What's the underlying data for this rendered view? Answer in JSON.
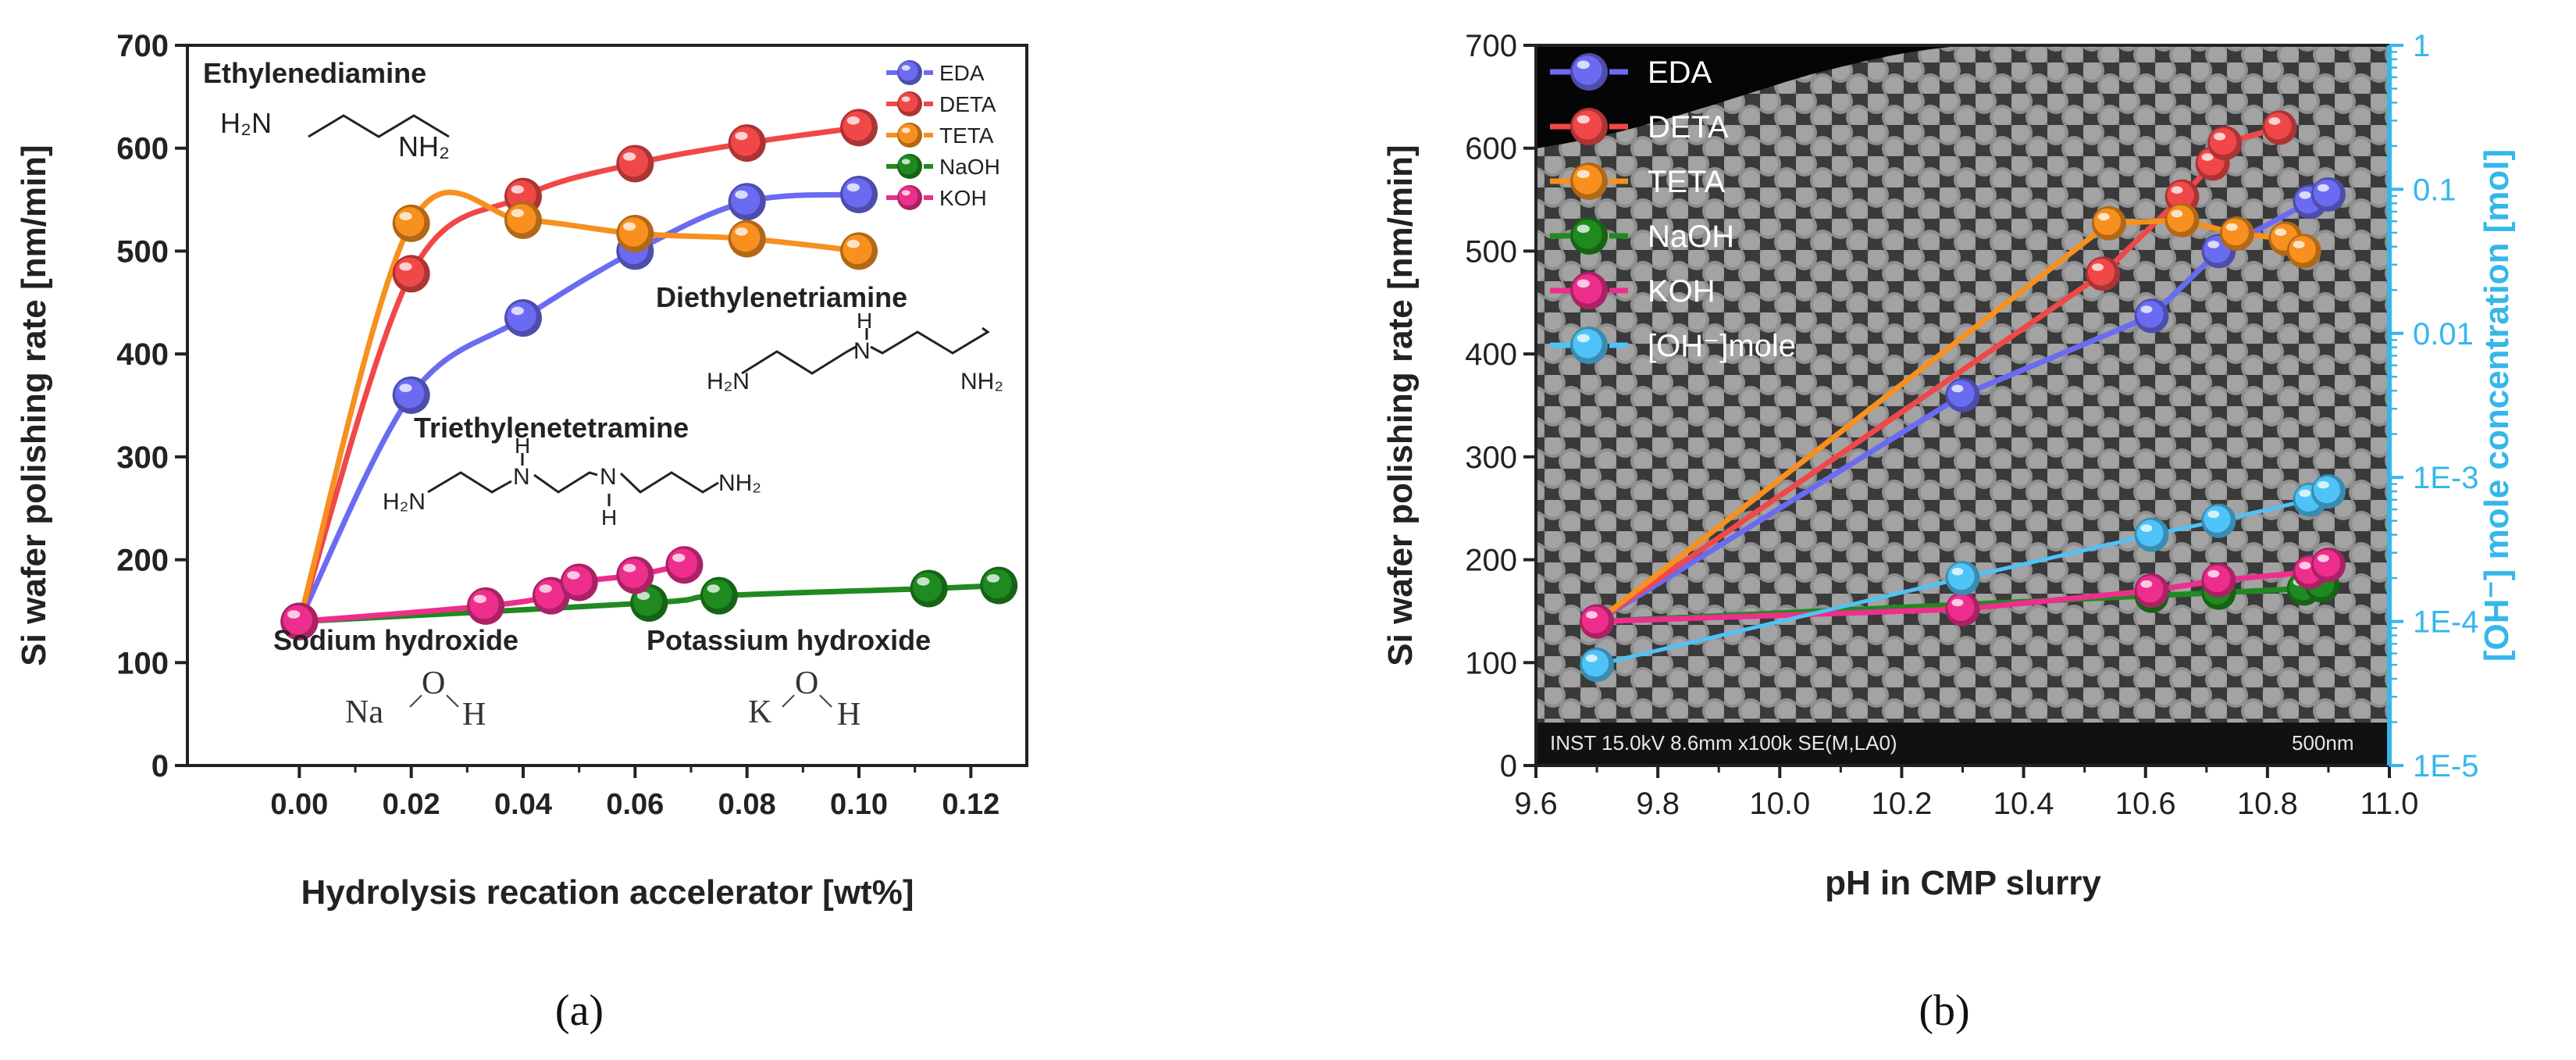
{
  "colors": {
    "EDA": "#6b6bf2",
    "DETA": "#f04848",
    "TETA": "#f7901e",
    "NaOH": "#1f8a1f",
    "KOH": "#ee2e8c",
    "OHmole": "#4fc3f7",
    "axis_right": "#35b7ea"
  },
  "chart_data": [
    {
      "type": "line",
      "panel_label": "(a)",
      "xlabel": "Hydrolysis recation accelerator [wt%]",
      "ylabel": "Si wafer polishing rate [nm/min]",
      "xlim": [
        -0.02,
        0.13
      ],
      "ylim": [
        0,
        700
      ],
      "xticks": [
        "0.00",
        "0.02",
        "0.04",
        "0.06",
        "0.08",
        "0.10",
        "0.12"
      ],
      "yticks": [
        "0",
        "100",
        "200",
        "300",
        "400",
        "500",
        "600",
        "700"
      ],
      "legend_position": "top-right",
      "series": [
        {
          "name": "EDA",
          "color_key": "EDA",
          "x": [
            0,
            0.02,
            0.04,
            0.06,
            0.08,
            0.1
          ],
          "y": [
            140,
            360,
            435,
            500,
            548,
            555
          ]
        },
        {
          "name": "DETA",
          "color_key": "DETA",
          "x": [
            0,
            0.02,
            0.04,
            0.06,
            0.08,
            0.1
          ],
          "y": [
            140,
            478,
            553,
            585,
            605,
            620
          ]
        },
        {
          "name": "TETA",
          "color_key": "TETA",
          "x": [
            0,
            0.02,
            0.04,
            0.06,
            0.08,
            0.1
          ],
          "y": [
            140,
            527,
            530,
            517,
            512,
            500
          ]
        },
        {
          "name": "NaOH",
          "color_key": "NaOH",
          "x": [
            0,
            0.0625,
            0.075,
            0.1125,
            0.125
          ],
          "y": [
            140,
            158,
            165,
            172,
            175
          ]
        },
        {
          "name": "KOH",
          "color_key": "KOH",
          "x": [
            0,
            0.0333,
            0.045,
            0.05,
            0.06,
            0.0688
          ],
          "y": [
            140,
            155,
            165,
            178,
            185,
            195
          ]
        }
      ],
      "annotations": [
        {
          "text": "Ethylenediamine",
          "formula": "EDA"
        },
        {
          "text": "Diethylenetriamine",
          "formula": "DETA"
        },
        {
          "text": "Triethylenetetramine",
          "formula": "TETA"
        },
        {
          "text": "Sodium hydroxide",
          "formula": "NaOH"
        },
        {
          "text": "Potassium hydroxide",
          "formula": "KOH"
        }
      ]
    },
    {
      "type": "line",
      "panel_label": "(b)",
      "xlabel": "pH in CMP slurry",
      "ylabel": "Si wafer polishing rate [nm/min]",
      "ylabel_right": "[OH⁻] mole concentration [mol]",
      "xlim": [
        9.6,
        11.0
      ],
      "ylim": [
        0,
        700
      ],
      "ylim_right_log": [
        1e-05,
        1
      ],
      "xticks": [
        "9.6",
        "9.8",
        "10.0",
        "10.2",
        "10.4",
        "10.6",
        "10.8",
        "11.0"
      ],
      "yticks": [
        "0",
        "100",
        "200",
        "300",
        "400",
        "500",
        "600",
        "700"
      ],
      "yticks_right": [
        "1E-5",
        "1E-4",
        "1E-3",
        "0.01",
        "0.1",
        "1"
      ],
      "legend_position": "top-left",
      "background_caption": "INST 15.0kV 8.6mm x100k SE(M,LA0)",
      "scale_bar": "500nm",
      "series": [
        {
          "name": "EDA",
          "color_key": "EDA",
          "axis": "left",
          "x": [
            9.7,
            10.3,
            10.61,
            10.72,
            10.87,
            10.9
          ],
          "y": [
            140,
            360,
            437,
            500,
            548,
            555
          ]
        },
        {
          "name": "DETA",
          "color_key": "DETA",
          "axis": "left",
          "x": [
            9.7,
            10.53,
            10.66,
            10.71,
            10.73,
            10.82
          ],
          "y": [
            140,
            478,
            553,
            585,
            605,
            620
          ]
        },
        {
          "name": "TETA",
          "color_key": "TETA",
          "axis": "left",
          "x": [
            9.7,
            10.54,
            10.66,
            10.75,
            10.83,
            10.86
          ],
          "y": [
            140,
            527,
            530,
            517,
            512,
            500
          ]
        },
        {
          "name": "NaOH",
          "color_key": "NaOH",
          "axis": "left",
          "x": [
            9.7,
            10.61,
            10.72,
            10.86,
            10.89
          ],
          "y": [
            140,
            165,
            168,
            172,
            175
          ]
        },
        {
          "name": "KOH",
          "color_key": "KOH",
          "axis": "left",
          "x": [
            9.7,
            10.3,
            10.61,
            10.72,
            10.87,
            10.9
          ],
          "y": [
            140,
            152,
            170,
            180,
            188,
            195
          ]
        },
        {
          "name": "[OH⁻]mole",
          "color_key": "OHmole",
          "axis": "right",
          "x": [
            9.7,
            10.3,
            10.61,
            10.72,
            10.87,
            10.9
          ],
          "y": [
            5e-05,
            0.0002,
            0.0004,
            0.0005,
            0.0007,
            0.0008
          ]
        }
      ]
    }
  ],
  "texts": {
    "a": {
      "legend": [
        "EDA",
        "DETA",
        "TETA",
        "NaOH",
        "KOH"
      ],
      "ethylene_label": "Ethylenediamine",
      "diethylene_label": "Diethylenetriamine",
      "triethylene_label": "Triethylenetetramine",
      "sodium_label": "Sodium hydroxide",
      "potassium_label": "Potassium hydroxide"
    },
    "b": {
      "legend": [
        "EDA",
        "DETA",
        "TETA",
        "NaOH",
        "KOH",
        "[OH⁻]mole"
      ]
    },
    "formula": {
      "H2N": "H₂N",
      "NH2": "NH₂",
      "H": "H",
      "N": "N",
      "Na": "Na",
      "K": "K",
      "O": "O"
    }
  }
}
